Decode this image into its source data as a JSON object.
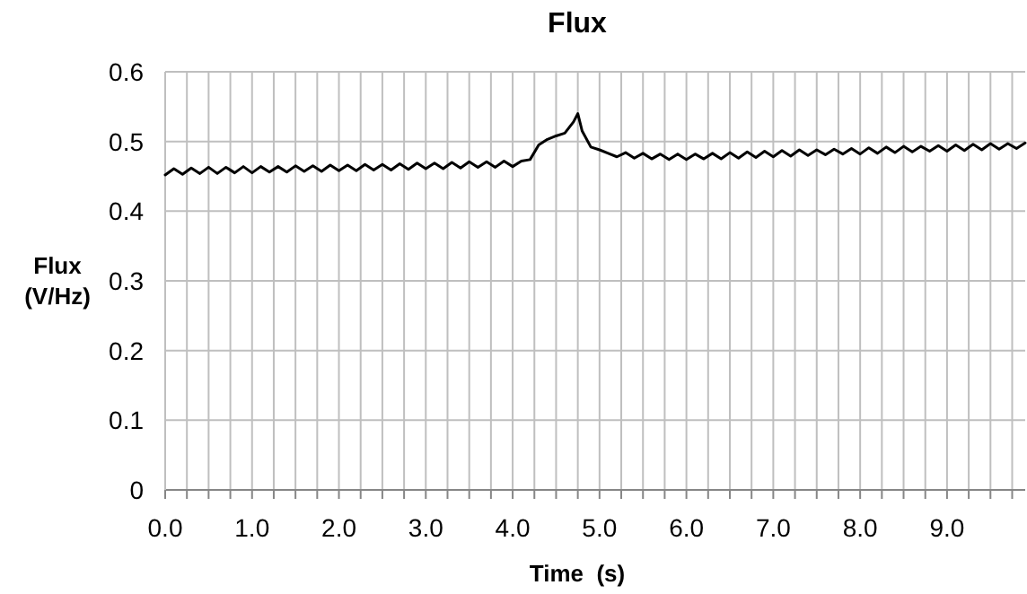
{
  "chart_data": {
    "type": "line",
    "title": "Flux",
    "xlabel": "Time  (s)",
    "ylabel": "Flux (V/Hz)",
    "xlim": [
      0,
      9.9
    ],
    "ylim": [
      0,
      0.6
    ],
    "yticks": [
      0,
      0.1,
      0.2,
      0.3,
      0.4,
      0.5,
      0.6
    ],
    "xticks": [
      {
        "value": 0,
        "label": "0.0"
      },
      {
        "value": 0.25,
        "label": null
      },
      {
        "value": 0.5,
        "label": null
      },
      {
        "value": 0.75,
        "label": null
      },
      {
        "value": 1,
        "label": "1.0"
      },
      {
        "value": 1.25,
        "label": null
      },
      {
        "value": 1.5,
        "label": null
      },
      {
        "value": 1.75,
        "label": null
      },
      {
        "value": 2,
        "label": "2.0"
      },
      {
        "value": 2.25,
        "label": null
      },
      {
        "value": 2.5,
        "label": null
      },
      {
        "value": 2.75,
        "label": null
      },
      {
        "value": 3,
        "label": "3.0"
      },
      {
        "value": 3.25,
        "label": null
      },
      {
        "value": 3.5,
        "label": null
      },
      {
        "value": 3.75,
        "label": null
      },
      {
        "value": 4,
        "label": "4.0"
      },
      {
        "value": 4.25,
        "label": null
      },
      {
        "value": 4.5,
        "label": null
      },
      {
        "value": 4.75,
        "label": null
      },
      {
        "value": 5,
        "label": "5.0"
      },
      {
        "value": 5.25,
        "label": null
      },
      {
        "value": 5.5,
        "label": null
      },
      {
        "value": 5.75,
        "label": null
      },
      {
        "value": 6,
        "label": "6.0"
      },
      {
        "value": 6.25,
        "label": null
      },
      {
        "value": 6.5,
        "label": null
      },
      {
        "value": 6.75,
        "label": null
      },
      {
        "value": 7,
        "label": "7.0"
      },
      {
        "value": 7.25,
        "label": null
      },
      {
        "value": 7.5,
        "label": null
      },
      {
        "value": 7.75,
        "label": null
      },
      {
        "value": 8,
        "label": "8.0"
      },
      {
        "value": 8.25,
        "label": null
      },
      {
        "value": 8.5,
        "label": null
      },
      {
        "value": 8.75,
        "label": null
      },
      {
        "value": 9,
        "label": "9.0"
      },
      {
        "value": 9.25,
        "label": null
      },
      {
        "value": 9.5,
        "label": null
      },
      {
        "value": 9.75,
        "label": null
      }
    ],
    "grid": true,
    "marker": "none",
    "line_style": "solid",
    "x": [
      0,
      0.1,
      0.2,
      0.3,
      0.4,
      0.5,
      0.6,
      0.7,
      0.8,
      0.9,
      1,
      1.1,
      1.2,
      1.3,
      1.4,
      1.5,
      1.6,
      1.7,
      1.8,
      1.9,
      2,
      2.1,
      2.2,
      2.3,
      2.4,
      2.5,
      2.6,
      2.7,
      2.8,
      2.9,
      3,
      3.1,
      3.2,
      3.3,
      3.4,
      3.5,
      3.6,
      3.7,
      3.8,
      3.9,
      4,
      4.1,
      4.2,
      4.3,
      4.4,
      4.5,
      4.6,
      4.7,
      4.75,
      4.8,
      4.9,
      5,
      5.1,
      5.2,
      5.3,
      5.4,
      5.5,
      5.6,
      5.7,
      5.8,
      5.9,
      6,
      6.1,
      6.2,
      6.3,
      6.4,
      6.5,
      6.6,
      6.7,
      6.8,
      6.9,
      7,
      7.1,
      7.2,
      7.3,
      7.4,
      7.5,
      7.6,
      7.7,
      7.8,
      7.9,
      8,
      8.1,
      8.2,
      8.3,
      8.4,
      8.5,
      8.6,
      8.7,
      8.8,
      8.9,
      9,
      9.1,
      9.2,
      9.3,
      9.4,
      9.5,
      9.6,
      9.7,
      9.8,
      9.9
    ],
    "series": [
      {
        "color": "#000000",
        "values": [
          0.452,
          0.461,
          0.453,
          0.462,
          0.454,
          0.463,
          0.454,
          0.463,
          0.455,
          0.464,
          0.455,
          0.464,
          0.456,
          0.464,
          0.456,
          0.465,
          0.457,
          0.465,
          0.457,
          0.466,
          0.458,
          0.466,
          0.458,
          0.467,
          0.459,
          0.467,
          0.459,
          0.468,
          0.46,
          0.469,
          0.461,
          0.469,
          0.461,
          0.47,
          0.462,
          0.471,
          0.463,
          0.471,
          0.463,
          0.472,
          0.464,
          0.472,
          0.474,
          0.495,
          0.503,
          0.508,
          0.512,
          0.528,
          0.54,
          0.515,
          0.492,
          0.488,
          0.483,
          0.478,
          0.484,
          0.476,
          0.483,
          0.475,
          0.482,
          0.474,
          0.482,
          0.474,
          0.482,
          0.475,
          0.483,
          0.475,
          0.484,
          0.476,
          0.485,
          0.477,
          0.486,
          0.478,
          0.487,
          0.479,
          0.488,
          0.48,
          0.488,
          0.481,
          0.489,
          0.482,
          0.49,
          0.482,
          0.491,
          0.483,
          0.492,
          0.484,
          0.493,
          0.485,
          0.493,
          0.486,
          0.494,
          0.486,
          0.495,
          0.487,
          0.496,
          0.488,
          0.497,
          0.489,
          0.497,
          0.49,
          0.498
        ]
      }
    ]
  }
}
